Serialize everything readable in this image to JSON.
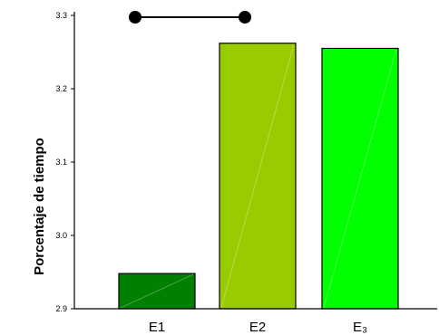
{
  "chart_data": {
    "type": "bar",
    "ylabel": "Porcentaje de tiempo",
    "xlabel": "",
    "ylim": [
      2.9,
      3.3
    ],
    "yticks": [
      "2.9",
      "3.0",
      "3.1",
      "3.2",
      "3.3"
    ],
    "yticks_values": [
      2.9,
      3.0,
      3.1,
      3.2,
      3.3
    ],
    "categories": [
      "E1",
      "E2",
      "E₃"
    ],
    "values": [
      2.948,
      3.262,
      3.255
    ],
    "colors": [
      "#008000",
      "#99cc00",
      "#00ff00"
    ],
    "significance": {
      "from": "E1",
      "to": "E2"
    },
    "grid": false
  }
}
